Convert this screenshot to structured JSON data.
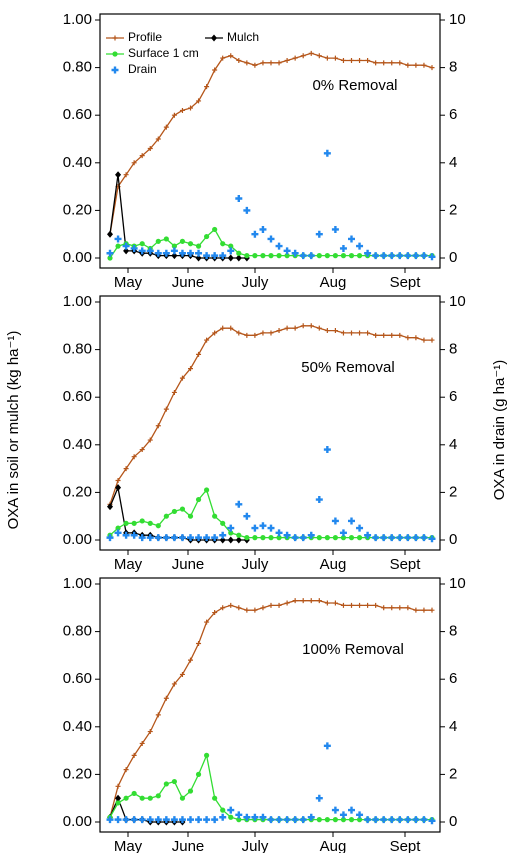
{
  "chart_data": [
    {
      "type": "line",
      "annotation": "0% Removal",
      "legend": true,
      "month_labels": [
        "May",
        "June",
        "July",
        "Aug",
        "Sept"
      ],
      "ylim": [
        0,
        1
      ],
      "yticks": [
        {
          "value": 0,
          "label": "0.00"
        },
        {
          "value": 0.2,
          "label": "0.20"
        },
        {
          "value": 0.4,
          "label": "0.40"
        },
        {
          "value": 0.6,
          "label": "0.60"
        },
        {
          "value": 0.8,
          "label": "0.80"
        },
        {
          "value": 1,
          "label": "1.00"
        }
      ],
      "y2lim": [
        0,
        10
      ],
      "y2ticks": [
        0,
        2,
        4,
        6,
        8,
        10
      ],
      "series": [
        {
          "name": "Profile",
          "color": "#b5561a",
          "marker": "plus",
          "values": [
            0.1,
            0.3,
            0.35,
            0.4,
            0.43,
            0.46,
            0.5,
            0.55,
            0.6,
            0.62,
            0.63,
            0.66,
            0.72,
            0.79,
            0.84,
            0.85,
            0.83,
            0.82,
            0.81,
            0.82,
            0.82,
            0.82,
            0.83,
            0.84,
            0.85,
            0.86,
            0.85,
            0.84,
            0.84,
            0.83,
            0.83,
            0.83,
            0.83,
            0.82,
            0.82,
            0.82,
            0.82,
            0.81,
            0.81,
            0.81,
            0.8
          ]
        },
        {
          "name": "Mulch",
          "color": "#000000",
          "marker": "diamond",
          "values": [
            0.1,
            0.35,
            0.03,
            0.03,
            0.02,
            0.02,
            0.01,
            0.01,
            0.01,
            0.01,
            0.01,
            0,
            0,
            0,
            0,
            0,
            0,
            0,
            null,
            null,
            null,
            null,
            null,
            null,
            null,
            null,
            null,
            null,
            null,
            null,
            null,
            null,
            null,
            null,
            null,
            null,
            null,
            null,
            null,
            null,
            null
          ]
        },
        {
          "name": "Surface 1 cm",
          "color": "#33dd33",
          "marker": "circle",
          "values": [
            0,
            0.05,
            0.06,
            0.05,
            0.06,
            0.04,
            0.07,
            0.08,
            0.05,
            0.07,
            0.06,
            0.05,
            0.09,
            0.12,
            0.06,
            0.05,
            0.02,
            0.01,
            0.01,
            0.01,
            0.01,
            0.01,
            0.01,
            0.01,
            0.01,
            0.01,
            0.01,
            0.01,
            0.01,
            0.01,
            0.01,
            0.01,
            0.01,
            0.01,
            0.01,
            0.01,
            0.01,
            0.01,
            0.01,
            0.01,
            0.01
          ]
        },
        {
          "name": "Drain",
          "color": "#2288ee",
          "marker": "cross",
          "axis": "y2",
          "values": [
            0.2,
            0.8,
            0.5,
            0.4,
            0.3,
            0.3,
            0.2,
            0.2,
            0.3,
            0.2,
            0.2,
            0.2,
            0.1,
            0.1,
            0.1,
            0.3,
            2.5,
            2.0,
            1.0,
            1.2,
            0.8,
            0.5,
            0.3,
            0.2,
            0.1,
            0.1,
            1.0,
            4.4,
            1.2,
            0.4,
            0.8,
            0.5,
            0.2,
            0.1,
            0.1,
            0.1,
            0.1,
            0.1,
            0.1,
            0.1,
            0.05
          ]
        }
      ]
    },
    {
      "type": "line",
      "annotation": "50% Removal",
      "ylabel": "OXA in soil or mulch (kg ha⁻¹)",
      "y2label": "OXA in drain (g ha⁻¹)",
      "month_labels": [
        "May",
        "June",
        "July",
        "Aug",
        "Sept"
      ],
      "ylim": [
        0,
        1
      ],
      "yticks": [
        {
          "value": 0,
          "label": "0.00"
        },
        {
          "value": 0.2,
          "label": "0.20"
        },
        {
          "value": 0.4,
          "label": "0.40"
        },
        {
          "value": 0.6,
          "label": "0.60"
        },
        {
          "value": 0.8,
          "label": "0.80"
        },
        {
          "value": 1,
          "label": "1.00"
        }
      ],
      "y2lim": [
        0,
        10
      ],
      "y2ticks": [
        0,
        2,
        4,
        6,
        8,
        10
      ],
      "series": [
        {
          "color": "#b5561a",
          "marker": "plus",
          "values": [
            0.15,
            0.25,
            0.3,
            0.35,
            0.38,
            0.42,
            0.48,
            0.55,
            0.62,
            0.68,
            0.72,
            0.78,
            0.84,
            0.87,
            0.89,
            0.89,
            0.87,
            0.86,
            0.86,
            0.87,
            0.87,
            0.88,
            0.89,
            0.89,
            0.9,
            0.9,
            0.89,
            0.88,
            0.88,
            0.87,
            0.87,
            0.87,
            0.87,
            0.86,
            0.86,
            0.86,
            0.86,
            0.85,
            0.85,
            0.84,
            0.84
          ]
        },
        {
          "color": "#000000",
          "marker": "diamond",
          "values": [
            0.14,
            0.22,
            0.03,
            0.03,
            0.02,
            0.02,
            0.01,
            0.01,
            0.01,
            0.01,
            0,
            0,
            0,
            0,
            0,
            0,
            0,
            0,
            null,
            null,
            null,
            null,
            null,
            null,
            null,
            null,
            null,
            null,
            null,
            null,
            null,
            null,
            null,
            null,
            null,
            null,
            null,
            null,
            null,
            null,
            null
          ]
        },
        {
          "color": "#33dd33",
          "marker": "circle",
          "values": [
            0.02,
            0.05,
            0.07,
            0.07,
            0.08,
            0.07,
            0.06,
            0.1,
            0.12,
            0.13,
            0.1,
            0.17,
            0.21,
            0.1,
            0.07,
            0.03,
            0.02,
            0.01,
            0.01,
            0.01,
            0.01,
            0.01,
            0.01,
            0.01,
            0.01,
            0.01,
            0.01,
            0.01,
            0.01,
            0.01,
            0.01,
            0.01,
            0.01,
            0.01,
            0.01,
            0.01,
            0.01,
            0.01,
            0.01,
            0.01,
            0.01
          ]
        },
        {
          "color": "#2288ee",
          "marker": "cross",
          "axis": "y2",
          "values": [
            0.1,
            0.3,
            0.2,
            0.2,
            0.1,
            0.1,
            0.1,
            0.1,
            0.1,
            0.1,
            0.1,
            0.1,
            0.1,
            0.1,
            0.2,
            0.5,
            1.5,
            1.0,
            0.5,
            0.6,
            0.5,
            0.3,
            0.2,
            0.1,
            0.1,
            0.2,
            1.7,
            3.8,
            0.8,
            0.3,
            0.8,
            0.5,
            0.2,
            0.1,
            0.1,
            0.1,
            0.1,
            0.1,
            0.1,
            0.1,
            0.05
          ]
        }
      ]
    },
    {
      "type": "line",
      "annotation": "100% Removal",
      "month_labels": [
        "May",
        "June",
        "July",
        "Aug",
        "Sept"
      ],
      "ylim": [
        0,
        1
      ],
      "yticks": [
        {
          "value": 0,
          "label": "0.00"
        },
        {
          "value": 0.2,
          "label": "0.20"
        },
        {
          "value": 0.4,
          "label": "0.40"
        },
        {
          "value": 0.6,
          "label": "0.60"
        },
        {
          "value": 0.8,
          "label": "0.80"
        },
        {
          "value": 1,
          "label": "1.00"
        }
      ],
      "y2lim": [
        0,
        10
      ],
      "y2ticks": [
        0,
        2,
        4,
        6,
        8,
        10
      ],
      "series": [
        {
          "color": "#b5561a",
          "marker": "plus",
          "values": [
            0.02,
            0.15,
            0.22,
            0.28,
            0.33,
            0.38,
            0.45,
            0.52,
            0.58,
            0.62,
            0.68,
            0.75,
            0.84,
            0.88,
            0.9,
            0.91,
            0.9,
            0.89,
            0.89,
            0.9,
            0.91,
            0.91,
            0.92,
            0.93,
            0.93,
            0.93,
            0.93,
            0.92,
            0.92,
            0.91,
            0.91,
            0.91,
            0.91,
            0.91,
            0.9,
            0.9,
            0.9,
            0.9,
            0.89,
            0.89,
            0.89
          ]
        },
        {
          "color": "#000000",
          "marker": "diamond",
          "values": [
            0.02,
            0.1,
            0.01,
            0.01,
            0.01,
            0,
            0,
            0,
            0,
            0,
            null,
            null,
            null,
            null,
            null,
            null,
            null,
            null,
            null,
            null,
            null,
            null,
            null,
            null,
            null,
            null,
            null,
            null,
            null,
            null,
            null,
            null,
            null,
            null,
            null,
            null,
            null,
            null,
            null,
            null,
            null
          ]
        },
        {
          "color": "#33dd33",
          "marker": "circle",
          "values": [
            0.02,
            0.08,
            0.1,
            0.12,
            0.1,
            0.1,
            0.11,
            0.16,
            0.17,
            0.1,
            0.13,
            0.2,
            0.28,
            0.1,
            0.05,
            0.02,
            0.01,
            0.01,
            0.01,
            0.01,
            0.01,
            0.01,
            0.01,
            0.01,
            0.01,
            0.01,
            0.01,
            0.01,
            0.01,
            0.01,
            0.01,
            0.01,
            0.01,
            0.01,
            0.01,
            0.01,
            0.01,
            0.01,
            0.01,
            0.01,
            0.01
          ]
        },
        {
          "color": "#2288ee",
          "marker": "cross",
          "axis": "y2",
          "values": [
            0.1,
            0.1,
            0.1,
            0.1,
            0.1,
            0.1,
            0.1,
            0.1,
            0.1,
            0.1,
            0.1,
            0.1,
            0.1,
            0.1,
            0.2,
            0.5,
            0.3,
            0.2,
            0.2,
            0.2,
            0.1,
            0.1,
            0.1,
            0.1,
            0.1,
            0.2,
            1.0,
            3.2,
            0.5,
            0.3,
            0.5,
            0.3,
            0.1,
            0.1,
            0.1,
            0.1,
            0.1,
            0.1,
            0.1,
            0.1,
            0.05
          ]
        }
      ]
    }
  ]
}
